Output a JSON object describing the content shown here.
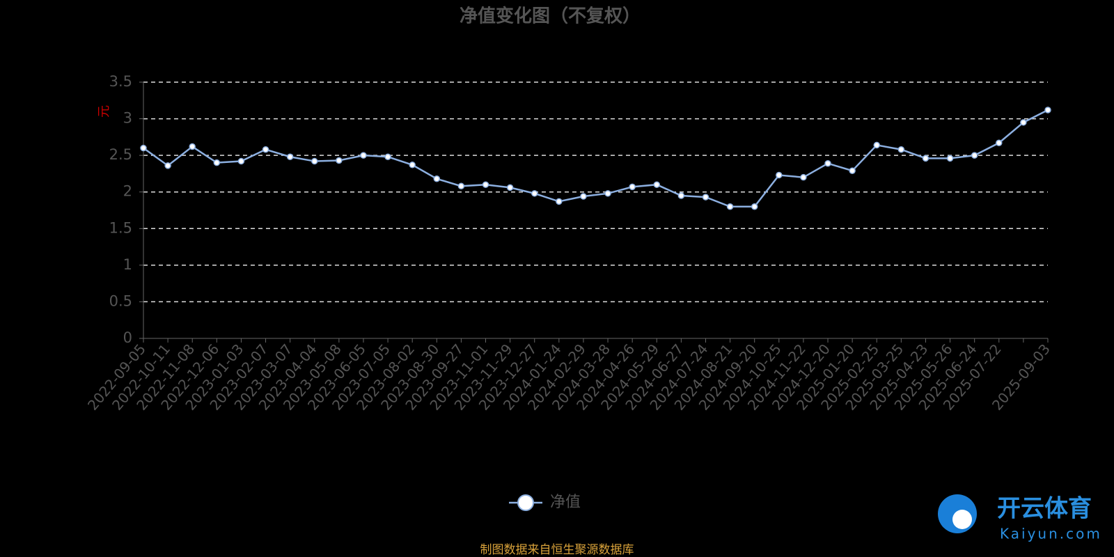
{
  "chart_data": {
    "type": "line",
    "title": "净值变化图（不复权）",
    "y_label": "元",
    "source": "制图数据来自恒生聚源数据库",
    "watermark": {
      "brand": "开云体育",
      "site": "Kaiyun.com"
    },
    "categories": [
      "2022-09-05",
      "2022-10-11",
      "2022-11-08",
      "2022-12-06",
      "2023-01-03",
      "2023-02-07",
      "2023-03-07",
      "2023-04-04",
      "2023-05-08",
      "2023-06-05",
      "2023-07-05",
      "2023-08-02",
      "2023-08-30",
      "2023-09-27",
      "2023-11-01",
      "2023-11-29",
      "2023-12-27",
      "2024-01-24",
      "2024-02-29",
      "2024-03-28",
      "2024-04-26",
      "2024-05-29",
      "2024-06-27",
      "2024-07-24",
      "2024-08-21",
      "2024-09-20",
      "2024-10-25",
      "2024-11-22",
      "2024-12-20",
      "2025-01-20",
      "2025-02-25",
      "2025-03-25",
      "2025-04-23",
      "2025-05-26",
      "2025-06-24",
      "2025-07-22",
      null,
      "2025-09-03"
    ],
    "series": [
      {
        "name": "净值",
        "color": "#8cafe0",
        "values": [
          2.6,
          2.36,
          2.62,
          2.4,
          2.42,
          2.58,
          2.48,
          2.42,
          2.43,
          2.5,
          2.48,
          2.37,
          2.18,
          2.08,
          2.1,
          2.06,
          1.98,
          1.87,
          1.94,
          1.98,
          2.07,
          2.1,
          1.95,
          1.93,
          1.8,
          1.8,
          2.23,
          2.2,
          2.39,
          2.29,
          2.64,
          2.58,
          2.46,
          2.46,
          2.5,
          2.67,
          2.95,
          3.12
        ]
      }
    ],
    "ylim": [
      0,
      3.5
    ],
    "yticks": [
      0,
      0.5,
      1,
      1.5,
      2,
      2.5,
      3,
      3.5
    ],
    "grid": true
  }
}
